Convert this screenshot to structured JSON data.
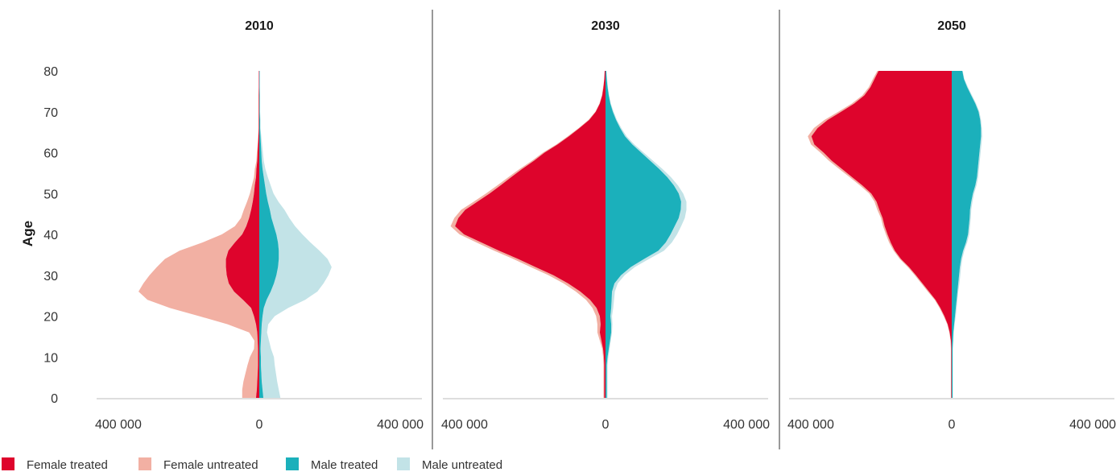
{
  "chart_data": {
    "type": "area",
    "subtype": "population pyramid (mirrored stacked area)",
    "ylabel": "Age",
    "ylim": [
      0,
      80
    ],
    "y_ticks": [
      "0",
      "10",
      "20",
      "30",
      "40",
      "50",
      "60",
      "70",
      "80"
    ],
    "x_ticks": [
      "400 000",
      "0",
      "400 000"
    ],
    "xlim": [
      -400000,
      400000
    ],
    "grid": false,
    "legend_position": "bottom-left",
    "colors": {
      "female_treated": "#DE042C",
      "female_untreated": "#F2B0A3",
      "male_treated": "#1BB0BB",
      "male_untreated": "#C2E3E7"
    },
    "legend": [
      {
        "key": "female_treated",
        "label": "Female treated"
      },
      {
        "key": "female_untreated",
        "label": "Female untreated"
      },
      {
        "key": "male_treated",
        "label": "Male treated"
      },
      {
        "key": "male_untreated",
        "label": "Male untreated"
      }
    ],
    "age": [
      0,
      2,
      4,
      6,
      8,
      10,
      12,
      14,
      16,
      18,
      20,
      22,
      24,
      26,
      28,
      30,
      32,
      34,
      36,
      38,
      40,
      42,
      44,
      46,
      48,
      50,
      52,
      54,
      56,
      58,
      60,
      62,
      64,
      66,
      68,
      70,
      72,
      74,
      76,
      78,
      80
    ],
    "panels": [
      {
        "year": "2010",
        "series": {
          "female_treated": [
            8000,
            6000,
            5000,
            4000,
            3000,
            3000,
            3000,
            4000,
            5000,
            8000,
            13000,
            20000,
            40000,
            62000,
            75000,
            80000,
            82000,
            82000,
            76000,
            60000,
            42000,
            32000,
            25000,
            20000,
            16000,
            13000,
            11000,
            8000,
            7000,
            5000,
            4000,
            3000,
            2000,
            1000,
            1000,
            1000,
            1000,
            1000,
            1000,
            1000,
            1000
          ],
          "female_untreated": [
            34000,
            36000,
            34000,
            30000,
            26000,
            20000,
            10000,
            8000,
            20000,
            70000,
            135000,
            200000,
            235000,
            235000,
            210000,
            190000,
            170000,
            150000,
            120000,
            80000,
            50000,
            28000,
            20000,
            18000,
            14000,
            10000,
            7000,
            5000,
            4000,
            2000,
            2000,
            1000,
            1000,
            1000,
            1000,
            1000,
            1000,
            1000,
            0,
            0,
            0
          ],
          "male_treated": [
            10000,
            8000,
            6000,
            5000,
            4000,
            4000,
            3000,
            4000,
            5000,
            6000,
            8000,
            11000,
            18000,
            28000,
            36000,
            42000,
            46000,
            48000,
            48000,
            46000,
            42000,
            36000,
            30000,
            26000,
            21000,
            17000,
            14000,
            11000,
            8000,
            6000,
            5000,
            4000,
            3000,
            2000,
            2000,
            1000,
            1000,
            1000,
            1000,
            1000,
            1000
          ],
          "male_untreated": [
            42000,
            40000,
            38000,
            36000,
            34000,
            32000,
            26000,
            20000,
            14000,
            16000,
            30000,
            60000,
            95000,
            115000,
            122000,
            128000,
            132000,
            120000,
            100000,
            80000,
            64000,
            52000,
            44000,
            36000,
            26000,
            18000,
            14000,
            10000,
            7000,
            5000,
            4000,
            3000,
            2000,
            1000,
            1000,
            1000,
            1000,
            1000,
            0,
            0,
            0
          ]
        }
      },
      {
        "year": "2030",
        "series": {
          "female_treated": [
            3000,
            3000,
            3000,
            3000,
            3000,
            4000,
            6000,
            10000,
            14000,
            12000,
            14000,
            22000,
            38000,
            62000,
            92000,
            128000,
            172000,
            215000,
            262000,
            305000,
            348000,
            370000,
            362000,
            345000,
            315000,
            285000,
            258000,
            232000,
            205000,
            176000,
            150000,
            118000,
            90000,
            64000,
            40000,
            24000,
            14000,
            8000,
            5000,
            3000,
            2000
          ],
          "female_untreated": [
            2000,
            2000,
            2000,
            2000,
            2000,
            2000,
            2000,
            4000,
            6000,
            8000,
            9000,
            10000,
            10000,
            11000,
            11000,
            12000,
            12000,
            12000,
            12000,
            12000,
            11000,
            11000,
            10000,
            10000,
            9000,
            9000,
            8000,
            7000,
            6000,
            5000,
            4000,
            3000,
            3000,
            2000,
            2000,
            1000,
            1000,
            1000,
            1000,
            0,
            0
          ],
          "male_treated": [
            3000,
            3000,
            3000,
            3000,
            3000,
            5000,
            8000,
            11000,
            14000,
            14000,
            12000,
            14000,
            15000,
            16000,
            22000,
            38000,
            62000,
            95000,
            130000,
            148000,
            160000,
            170000,
            180000,
            185000,
            186000,
            180000,
            168000,
            152000,
            132000,
            110000,
            88000,
            66000,
            48000,
            36000,
            26000,
            18000,
            12000,
            8000,
            5000,
            3000,
            2000
          ],
          "male_untreated": [
            2000,
            2000,
            2000,
            2000,
            2000,
            2000,
            2000,
            2000,
            2000,
            3000,
            4000,
            5000,
            6000,
            7000,
            8000,
            9000,
            10000,
            12000,
            14000,
            15000,
            16000,
            16000,
            15000,
            14000,
            13000,
            11000,
            10000,
            9000,
            8000,
            7000,
            6000,
            5000,
            4000,
            3000,
            2000,
            2000,
            1000,
            1000,
            1000,
            1000,
            0
          ]
        }
      },
      {
        "year": "2050",
        "series": {
          "female_treated": [
            1000,
            1000,
            1000,
            1000,
            1000,
            1000,
            1000,
            2000,
            5000,
            10000,
            18000,
            28000,
            40000,
            56000,
            72000,
            88000,
            105000,
            125000,
            140000,
            150000,
            158000,
            165000,
            170000,
            178000,
            185000,
            198000,
            220000,
            245000,
            270000,
            295000,
            315000,
            338000,
            345000,
            330000,
            305000,
            272000,
            240000,
            215000,
            200000,
            190000,
            180000
          ],
          "female_untreated": [
            1000,
            1000,
            1000,
            1000,
            1000,
            1000,
            1000,
            1000,
            1000,
            1000,
            2000,
            2000,
            2000,
            3000,
            3000,
            3000,
            3000,
            3000,
            3000,
            4000,
            4000,
            4000,
            4000,
            5000,
            5000,
            5000,
            6000,
            6000,
            7000,
            7000,
            8000,
            8000,
            9000,
            9000,
            8000,
            7000,
            6000,
            5000,
            4000,
            4000,
            3000
          ],
          "male_treated": [
            2000,
            2000,
            2000,
            2000,
            2000,
            2000,
            2000,
            3000,
            4000,
            6000,
            8000,
            10000,
            12000,
            14000,
            16000,
            18000,
            20000,
            23000,
            28000,
            35000,
            40000,
            42000,
            44000,
            45000,
            48000,
            52000,
            58000,
            62000,
            64000,
            66000,
            68000,
            70000,
            72000,
            72000,
            70000,
            66000,
            58000,
            48000,
            38000,
            30000,
            26000
          ],
          "male_untreated": [
            1000,
            1000,
            1000,
            1000,
            1000,
            1000,
            1000,
            1000,
            1000,
            1000,
            2000,
            2000,
            2000,
            2000,
            3000,
            3000,
            3000,
            3000,
            3000,
            3000,
            3000,
            3000,
            3000,
            3000,
            3000,
            3000,
            3000,
            3000,
            3000,
            3000,
            3000,
            3000,
            3000,
            2000,
            2000,
            2000,
            2000,
            2000,
            2000,
            1000,
            1000
          ]
        }
      }
    ]
  }
}
